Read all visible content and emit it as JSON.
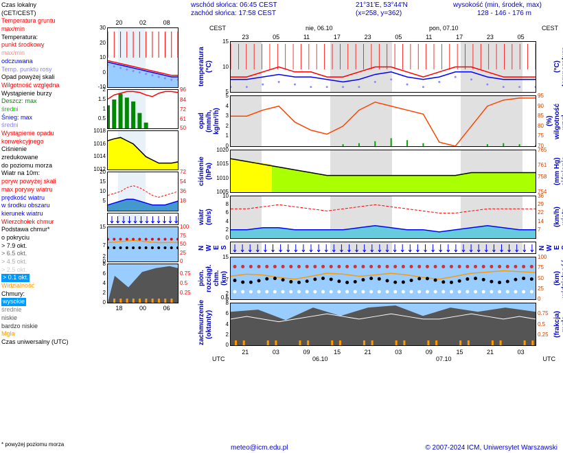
{
  "header": {
    "sunrise": "wschód słońca: 06:45 CEST",
    "sunset": "zachód słońca: 17:58 CEST",
    "coords": "21°31'E, 53°44'N",
    "xy": "(x=258, y=362)",
    "elevation_label": "wysokość (min, środek, max)",
    "elevation": "128 - 146 - 176 m"
  },
  "legend": {
    "items": [
      {
        "text": "Czas lokalny",
        "color": "#000000"
      },
      {
        "text": "(CET/CEST)",
        "color": "#000000"
      },
      {
        "text": "Temperatura gruntu",
        "color": "#ff0000"
      },
      {
        "text": " max/min",
        "color": "#ff0000"
      },
      {
        "text": "Temperatura:",
        "color": "#000000"
      },
      {
        "text": " punkt środkowy",
        "color": "#ff0000"
      },
      {
        "text": " max/min",
        "color": "#ff8888"
      },
      {
        "text": " odczuwana",
        "color": "#0000ff"
      },
      {
        "text": "Temp. punktu rosy",
        "color": "#8080ff"
      },
      {
        "text": "Opad powyżej skali",
        "color": "#000000"
      },
      {
        "text": "Wilgotność względna",
        "color": "#ff0000"
      },
      {
        "text": "Wystąpienie burzy",
        "color": "#000000"
      },
      {
        "text": "Deszcz:  max",
        "color": "#008800"
      },
      {
        "text": "             średni",
        "color": "#00cc00"
      },
      {
        "text": "Śnieg:   max",
        "color": "#0000ff"
      },
      {
        "text": "             średni",
        "color": "#8888ff"
      },
      {
        "text": "Wystąpienie opadu",
        "color": "#ff0000"
      },
      {
        "text": "konwekcyjnego",
        "color": "#ff0000"
      },
      {
        "text": "Ciśnienie",
        "color": "#000000"
      },
      {
        "text": "zredukowane",
        "color": "#000000"
      },
      {
        "text": "do poziomu morza",
        "color": "#000000"
      },
      {
        "text": "Wiatr na 10m:",
        "color": "#000000"
      },
      {
        "text": " poryw powyżej skali",
        "color": "#ff0000"
      },
      {
        "text": " max porywy wiatru",
        "color": "#ff0000"
      },
      {
        "text": " prędkość wiatru",
        "color": "#0000ff"
      },
      {
        "text": " w środku obszaru",
        "color": "#0000ff"
      },
      {
        "text": " kierunek wiatru",
        "color": "#0000ff"
      },
      {
        "text": "Wierzchołek chmur",
        "color": "#ff0000"
      },
      {
        "text": "Podstawa chmur*",
        "color": "#000000"
      },
      {
        "text": " o pokryciu",
        "color": "#000000"
      },
      {
        "text": " > 7.9 okt.",
        "color": "#000000"
      },
      {
        "text": " > 6.5 okt.",
        "color": "#666666"
      },
      {
        "text": " > 4.5 okt.",
        "color": "#aaaaaa"
      },
      {
        "text": " > 2.5 okt.",
        "color": "#cccccc"
      },
      {
        "text": " > 0.1 okt.",
        "color": "#ffffff",
        "bg": "#0099ff"
      },
      {
        "text": "Widzialność",
        "color": "#ff9900"
      },
      {
        "text": "Chmury:",
        "color": "#000000"
      },
      {
        "text": " wysokie",
        "color": "#ffffff",
        "bg": "#0099ff"
      },
      {
        "text": " średnie",
        "color": "#888888"
      },
      {
        "text": " niskie",
        "color": "#555555"
      },
      {
        "text": " bardzo niskie",
        "color": "#333333"
      },
      {
        "text": "Mgła",
        "color": "#ff9900"
      },
      {
        "text": "Czas uniwersalny (UTC)",
        "color": "#000000"
      }
    ]
  },
  "small_time_ticks": [
    "20",
    "02",
    "08"
  ],
  "small_bottom_ticks": [
    "18",
    "00",
    "06"
  ],
  "big_top_label1": "nie, 06.10",
  "big_top_label2": "pon, 07.10",
  "big_time_ticks": [
    "23",
    "05",
    "11",
    "17",
    "23",
    "05",
    "11",
    "17",
    "23",
    "05"
  ],
  "big_bottom_ticks": [
    "21",
    "03",
    "09",
    "15",
    "21",
    "03",
    "09",
    "15",
    "21",
    "03"
  ],
  "big_date1": "06.10",
  "big_date2": "07.10",
  "cest_label": "CEST",
  "utc_label": "UTC",
  "small_charts": [
    {
      "name": "temperature",
      "height": 88,
      "ylim": [
        -10,
        30
      ],
      "yticks": [
        -10,
        0,
        10,
        20,
        30
      ],
      "ylim_r": [
        -10,
        30
      ],
      "red_line": [
        8,
        7,
        6,
        5,
        4,
        3,
        2,
        1,
        0,
        -1,
        -2,
        -2
      ],
      "blue_line": [
        7,
        6,
        5,
        4,
        3,
        2,
        1,
        0,
        -1,
        -2,
        -3,
        -3
      ],
      "dots": [
        5,
        4,
        3,
        2,
        1,
        0,
        -1,
        -2,
        -3,
        -4,
        -5,
        -5
      ],
      "colors": {
        "red": "#ff0000",
        "blue": "#0000ff",
        "dots": "#8888ff",
        "fill": "#99ccff"
      }
    },
    {
      "name": "precip",
      "height": 58,
      "ylim": [
        0,
        2
      ],
      "yticks": [
        0.5,
        1.0,
        1.5,
        2.0
      ],
      "ylim_r": [
        50,
        96
      ],
      "yticks_r": [
        50,
        61,
        72,
        84,
        96
      ],
      "red_line": [
        85,
        90,
        92,
        94,
        94,
        93,
        90,
        88,
        92,
        94,
        94,
        93
      ],
      "green_bars": [
        1.2,
        1.5,
        1.8,
        1.6,
        1.4,
        0.8,
        0.3,
        0,
        0,
        0,
        0,
        0
      ],
      "colors": {
        "red": "#ff0000",
        "green": "#008800",
        "fill": "#008800"
      }
    },
    {
      "name": "pressure",
      "height": 58,
      "ylim": [
        1012,
        1018
      ],
      "yticks": [
        1012,
        1014,
        1016,
        1018
      ],
      "ylim_r": [
        1012,
        1018
      ],
      "black_line": [
        1016.5,
        1016.8,
        1017,
        1016.5,
        1016,
        1015,
        1014,
        1013.5,
        1013,
        1013,
        1013,
        1013.2
      ],
      "colors": {
        "line": "#000000",
        "fill": "#ffff00"
      }
    },
    {
      "name": "wind",
      "height": 58,
      "ylim": [
        0,
        20
      ],
      "yticks": [
        5,
        10,
        15,
        20
      ],
      "ylim_r": [
        0,
        72
      ],
      "yticks_r": [
        18,
        36,
        54,
        72
      ],
      "red_line": [
        8,
        9,
        10,
        12,
        13,
        12,
        10,
        8,
        7,
        8,
        9,
        10
      ],
      "blue_area": [
        3,
        4,
        5,
        6,
        6,
        5,
        4,
        3,
        3,
        3,
        4,
        5
      ],
      "colors": {
        "red": "#ff0000",
        "blue": "#0000ff",
        "fill": "#4499cc"
      }
    },
    {
      "name": "winddir",
      "height": 18,
      "arrows": true,
      "colors": {
        "arrow": "#0000ff"
      }
    },
    {
      "name": "clouds",
      "height": 52,
      "ylim": [
        0,
        15
      ],
      "yticks": [
        0.0,
        2.0,
        7.0,
        15.0
      ],
      "ylim_r": [
        0,
        100
      ],
      "yticks_r": [
        0,
        25,
        50,
        75,
        100
      ],
      "colors": {
        "bg": "#99ccff",
        "orange": "#ff9900",
        "red": "#ff0000",
        "black": "#000000"
      }
    },
    {
      "name": "cloudcover",
      "height": 58,
      "ylim": [
        0,
        8
      ],
      "yticks": [
        0,
        2,
        4,
        6,
        8
      ],
      "ylim_r": [
        0,
        1
      ],
      "yticks_r": [
        0.25,
        0.5,
        0.75
      ],
      "colors": {
        "bg": "#99ccff",
        "dark": "#555555",
        "orange": "#ff9900"
      }
    }
  ],
  "big_charts": [
    {
      "name": "temperature",
      "height": 75,
      "label_l": "temperatura\n(°C)",
      "label_r": "(°C)\ntemperatura",
      "ylim": [
        5,
        15
      ],
      "yticks": [
        5,
        10,
        15
      ],
      "red_line": [
        8,
        8,
        9,
        10,
        9,
        9,
        8,
        8,
        9,
        10,
        10,
        9,
        8,
        9,
        10,
        10,
        9,
        8,
        8,
        8
      ],
      "blue_line": [
        7.5,
        7.5,
        8,
        8.5,
        8,
        8,
        7.5,
        7,
        7.5,
        8.5,
        9,
        8,
        7.5,
        8,
        9,
        9,
        8,
        7.5,
        7.5,
        7.5
      ],
      "dots": [
        6,
        6,
        6.5,
        7,
        6.5,
        6,
        6,
        6,
        6,
        7,
        7.5,
        6.5,
        6,
        7,
        8,
        7.5,
        6.5,
        6,
        6,
        6
      ],
      "colors": {
        "red": "#ff0000",
        "blue": "#0000ff",
        "dots": "#8888ff",
        "vline": "#ff0000"
      }
    },
    {
      "name": "precip",
      "height": 75,
      "label_l": "opad\n(mm/h, kg/m²/h)",
      "label_r": "(%)\nwilgotność wzgl.",
      "ylim": [
        0,
        5
      ],
      "yticks": [
        0,
        1,
        2,
        3,
        4,
        5
      ],
      "ylim_r": [
        70,
        95
      ],
      "yticks_r": [
        70,
        75,
        80,
        85,
        90,
        95
      ],
      "red_line": [
        85,
        85,
        88,
        90,
        82,
        78,
        76,
        80,
        88,
        92,
        90,
        88,
        86,
        72,
        70,
        80,
        90,
        93,
        94,
        94
      ],
      "green_bars": [
        0,
        0,
        0,
        0,
        0,
        0,
        0,
        0.2,
        0.3,
        0.5,
        0.8,
        0.6,
        0.3,
        0,
        0,
        0,
        0.2,
        0.3,
        0.2,
        0.1
      ],
      "colors": {
        "red": "#ff4400",
        "green": "#00aa00"
      }
    },
    {
      "name": "pressure",
      "height": 63,
      "label_l": "ciśnienie\n(hPa)",
      "label_r": "(mm Hg)\nciśnienie",
      "ylim": [
        1005,
        1020
      ],
      "yticks": [
        1005,
        1010,
        1015,
        1020
      ],
      "ylim_r": [
        754,
        765
      ],
      "yticks_r": [
        754,
        758,
        761,
        765
      ],
      "black_line": [
        1017,
        1016,
        1015,
        1014,
        1013,
        1012,
        1011,
        1011,
        1011,
        1011,
        1011,
        1011,
        1011,
        1011,
        1011,
        1012,
        1012,
        1012,
        1012,
        1012
      ],
      "colors": {
        "line": "#000000",
        "fill_l": "#ffff00",
        "fill_r": "#aaff00"
      }
    },
    {
      "name": "wind",
      "height": 63,
      "label_l": "wiatr\n(m/s)",
      "label_r": "(km/h)\nwiatr",
      "ylim": [
        0,
        10
      ],
      "yticks": [
        0,
        2,
        4,
        6,
        8,
        10
      ],
      "ylim_r": [
        0,
        36
      ],
      "yticks_r": [
        7,
        14,
        22,
        29,
        36
      ],
      "red_line": [
        7,
        7,
        7.5,
        8,
        7.5,
        7,
        6.5,
        7,
        7.5,
        8,
        7.5,
        7,
        6.5,
        6,
        6,
        6.5,
        7,
        7,
        7,
        7
      ],
      "blue_area": [
        2,
        2,
        2.5,
        2.5,
        2,
        2,
        2,
        2,
        2.5,
        3,
        2.5,
        2,
        2,
        1.5,
        2,
        2.5,
        3,
        2.5,
        2,
        2
      ],
      "colors": {
        "red": "#ff0000",
        "blue": "#0000ff",
        "fill": "#66ccdd"
      }
    },
    {
      "name": "winddir",
      "height": 18,
      "arrows": true,
      "label_l": "N\nW  E\nS",
      "label_r": "N\nW  E\nS",
      "colors": {
        "arrow": "#0000ff"
      }
    },
    {
      "name": "clouds",
      "height": 63,
      "label_l": "pion. rozciągł. chm.\n(km)",
      "label_r": "(km)\nwidzialność",
      "ylim": [
        0,
        15
      ],
      "yticks": [
        0.0,
        0.5,
        2.0,
        7.0,
        15.0
      ],
      "ylim_r": [
        0,
        100
      ],
      "yticks_r": [
        0,
        25,
        50,
        75,
        100
      ],
      "colors": {
        "bg": "#99ccff",
        "orange": "#ff9900",
        "red": "#cc3333",
        "black": "#000000",
        "white": "#ffffff"
      }
    },
    {
      "name": "cloudcover",
      "height": 63,
      "label_l": "zachmurzenie\n(oktanty)",
      "label_r": "(frakcja)\nmgła",
      "ylim": [
        0,
        8
      ],
      "yticks": [
        0,
        2,
        4,
        6,
        8
      ],
      "ylim_r": [
        0,
        1
      ],
      "yticks_r": [
        0.25,
        0.5,
        0.75
      ],
      "colors": {
        "bg": "#99ccff",
        "dark": "#555555",
        "white": "#ffffff",
        "orange": "#ff9900"
      }
    }
  ],
  "footer": {
    "note": "* powyżej poziomu morza",
    "url": "meteo@icm.edu.pl",
    "copyright": "© 2007-2024 ICM, Uniwersytet Warszawski"
  }
}
